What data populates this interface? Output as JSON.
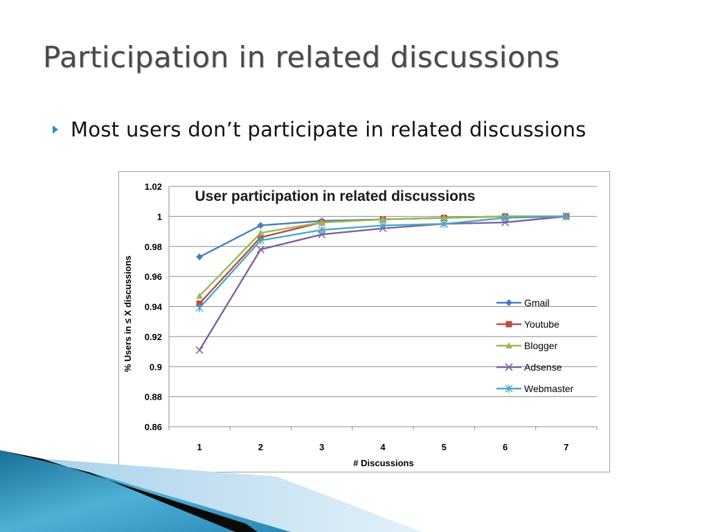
{
  "slide": {
    "title": "Participation in related discussions",
    "bullet": "Most users don’t participate in related discussions",
    "accent_color": "#2e8fc0"
  },
  "chart_data": {
    "type": "line",
    "title": "User participation in related discussions",
    "xlabel": "# Discussions",
    "ylabel": "% Users in ≤ X discussions",
    "categories": [
      "1",
      "2",
      "3",
      "4",
      "5",
      "6",
      "7"
    ],
    "ylim": [
      0.86,
      1.02
    ],
    "yticks": [
      "0.86",
      "0.88",
      "0.9",
      "0.92",
      "0.94",
      "0.96",
      "0.98",
      "1",
      "1.02"
    ],
    "grid": "horizontal",
    "legend_position": "right",
    "series": [
      {
        "name": "Gmail",
        "color": "#4a7ebb",
        "marker": "diamond",
        "values": [
          0.973,
          0.994,
          0.997,
          0.998,
          0.999,
          1.0,
          1.0
        ]
      },
      {
        "name": "Youtube",
        "color": "#be4b48",
        "marker": "square",
        "values": [
          0.942,
          0.986,
          0.996,
          0.998,
          0.999,
          1.0,
          1.0
        ]
      },
      {
        "name": "Blogger",
        "color": "#98b954",
        "marker": "triangle",
        "values": [
          0.947,
          0.989,
          0.996,
          0.998,
          0.999,
          1.0,
          1.0
        ]
      },
      {
        "name": "Adsense",
        "color": "#7d60a0",
        "marker": "x",
        "values": [
          0.911,
          0.978,
          0.988,
          0.992,
          0.995,
          0.996,
          1.0
        ]
      },
      {
        "name": "Webmaster",
        "color": "#46aac5",
        "marker": "star",
        "values": [
          0.939,
          0.984,
          0.991,
          0.994,
          0.995,
          0.999,
          1.0
        ]
      }
    ]
  }
}
